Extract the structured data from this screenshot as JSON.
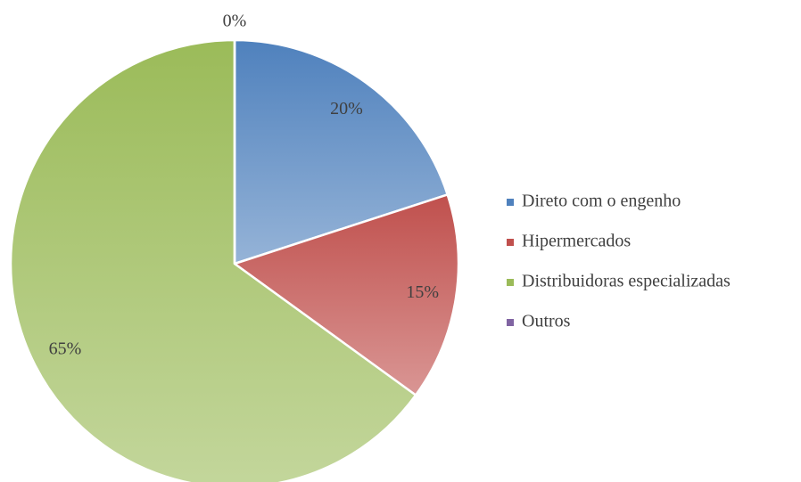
{
  "chart_data": {
    "type": "pie",
    "categories": [
      "Direto com o engenho",
      "Hipermercados",
      "Distribuidoras especializadas",
      "Outros"
    ],
    "values": [
      20,
      15,
      65,
      0
    ],
    "value_labels": [
      "20%",
      "15%",
      "65%",
      "0%"
    ],
    "colors": [
      "#4f81bd",
      "#c0504d",
      "#9bbb59",
      "#8064a2"
    ],
    "legend": "right"
  }
}
